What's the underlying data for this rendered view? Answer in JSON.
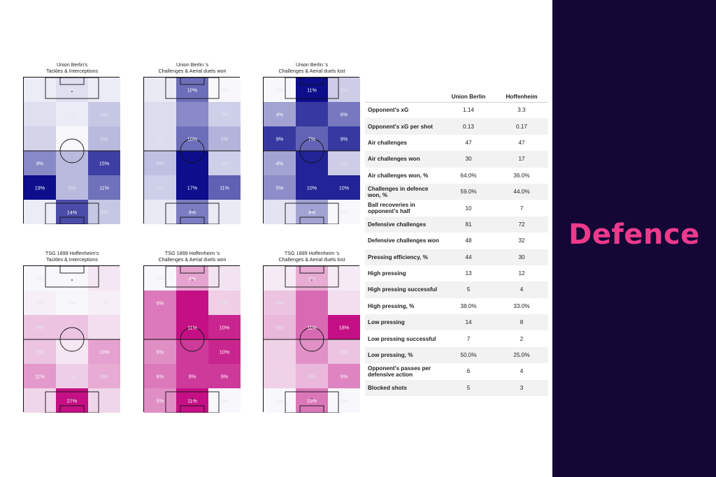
{
  "panel": {
    "title": "Defence",
    "background": "#140736",
    "accent": "#ee3a8c"
  },
  "teams": {
    "home": "Union Berlin",
    "away": "Hoffenheim"
  },
  "chart_data": [
    {
      "type": "heatmap",
      "title": "Union Berlin's\nTackles & Interceptions",
      "colormap": "blues",
      "rows": 6,
      "cols": 3,
      "labels": [
        [
          "",
          "2%",
          ""
        ],
        [
          "2%",
          "1%",
          "4%"
        ],
        [
          "",
          "",
          "5%"
        ],
        [
          "9%",
          "",
          "15%"
        ],
        [
          "19%",
          "5%",
          "11%"
        ],
        [
          "",
          "14%",
          "4%"
        ]
      ],
      "values": [
        [
          1,
          2,
          1
        ],
        [
          2,
          1,
          4
        ],
        [
          3,
          0,
          5
        ],
        [
          9,
          5,
          15
        ],
        [
          19,
          5,
          11
        ],
        [
          1,
          14,
          4
        ]
      ]
    },
    {
      "type": "heatmap",
      "title": "Union Berlin 's\nChallenges & Aerial duels won",
      "colormap": "blues",
      "rows": 6,
      "cols": 3,
      "labels": [
        [
          "3%",
          "10%",
          "0%"
        ],
        [
          "",
          "",
          "3%"
        ],
        [
          "0%",
          "10%",
          "5%"
        ],
        [
          "4%",
          "",
          "3%"
        ],
        [
          "1%",
          "17%",
          "11%"
        ],
        [
          "",
          "9%",
          ""
        ]
      ],
      "values": [
        [
          1,
          10,
          0
        ],
        [
          2,
          8,
          3
        ],
        [
          2,
          10,
          5
        ],
        [
          4,
          17,
          3
        ],
        [
          3,
          17,
          11
        ],
        [
          1,
          9,
          1
        ]
      ]
    },
    {
      "type": "heatmap",
      "title": "Union Berlin 's\nChallenges & Aerial duels lost",
      "colormap": "blues",
      "rows": 6,
      "cols": 3,
      "labels": [
        [
          "0%",
          "11%",
          "2%"
        ],
        [
          "4%",
          "",
          "6%"
        ],
        [
          "9%",
          "7%",
          "9%"
        ],
        [
          "4%",
          "",
          "2%"
        ],
        [
          "5%",
          "10%",
          "10%"
        ],
        [
          "",
          "4%",
          "0%"
        ]
      ],
      "values": [
        [
          0,
          11,
          2
        ],
        [
          4,
          9,
          6
        ],
        [
          9,
          7,
          9
        ],
        [
          4,
          10,
          2
        ],
        [
          5,
          10,
          10
        ],
        [
          1,
          4,
          0
        ]
      ]
    },
    {
      "type": "heatmap",
      "title": "TSG 1899 Hoffenheim's\nTackles & Interceptions",
      "colormap": "pinks",
      "rows": 6,
      "cols": 3,
      "labels": [
        [
          "0%",
          "",
          "2%"
        ],
        [
          "1%",
          "0%",
          "1%"
        ],
        [
          "6%",
          "",
          ""
        ],
        [
          "6%",
          "",
          "10%"
        ],
        [
          "11%",
          "5%",
          "9%"
        ],
        [
          "",
          "27%",
          ""
        ]
      ],
      "values": [
        [
          0,
          0,
          2
        ],
        [
          1,
          0,
          1
        ],
        [
          6,
          6,
          3
        ],
        [
          6,
          2,
          10
        ],
        [
          11,
          5,
          9
        ],
        [
          4,
          27,
          4
        ]
      ]
    },
    {
      "type": "heatmap",
      "title": "TSG 1899 Hoffenheim 's\nChallenges & Aerial duels won",
      "colormap": "pinks",
      "rows": 6,
      "cols": 3,
      "labels": [
        [
          "0%",
          "4%",
          ""
        ],
        [
          "6%",
          "",
          "0%"
        ],
        [
          "",
          "11%",
          "10%"
        ],
        [
          "5%",
          "",
          "10%"
        ],
        [
          "6%",
          "9%",
          "9%"
        ],
        [
          "5%",
          "11%",
          "0%"
        ]
      ],
      "values": [
        [
          0,
          4,
          1
        ],
        [
          6,
          11,
          2
        ],
        [
          6,
          11,
          10
        ],
        [
          5,
          9,
          10
        ],
        [
          6,
          9,
          9
        ],
        [
          5,
          11,
          0
        ]
      ]
    },
    {
      "type": "heatmap",
      "title": "TSG 1899 Hoffenheim 's\nChallenges & Aerial duels lost",
      "colormap": "pinks",
      "rows": 6,
      "cols": 3,
      "labels": [
        [
          "",
          "6%",
          ""
        ],
        [
          "4%",
          "",
          "2%"
        ],
        [
          "5%",
          "11%",
          "18%"
        ],
        [
          "3%",
          "",
          "4%"
        ],
        [
          "3%",
          "5%",
          "9%"
        ],
        [
          "0%",
          "10%",
          "0%"
        ]
      ],
      "values": [
        [
          1,
          6,
          1
        ],
        [
          4,
          11,
          2
        ],
        [
          5,
          11,
          18
        ],
        [
          3,
          8,
          4
        ],
        [
          3,
          5,
          9
        ],
        [
          0,
          10,
          0
        ]
      ]
    }
  ],
  "table": {
    "headers": [
      "",
      "Union Berlin",
      "Hoffenheim"
    ],
    "rows": [
      [
        "Opponent's xG",
        "1.14",
        "3.3"
      ],
      [
        "Opponent's xG per shot",
        "0.13",
        "0.17"
      ],
      [
        "Air challenges",
        "47",
        "47"
      ],
      [
        "Air challenges won",
        "30",
        "17"
      ],
      [
        "Air challenges won, %",
        "64.0%",
        "36.0%"
      ],
      [
        "Challenges in defence won, %",
        "59.0%",
        "44.0%"
      ],
      [
        "Ball recoveries in opponent's half",
        "10",
        "7"
      ],
      [
        "Defensive challenges",
        "81",
        "72"
      ],
      [
        "Defensive challenges won",
        "48",
        "32"
      ],
      [
        "Pressing efficiency, %",
        "44",
        "30"
      ],
      [
        "High pressing",
        "13",
        "12"
      ],
      [
        "High pressing successful",
        "5",
        "4"
      ],
      [
        "High pressing, %",
        "38.0%",
        "33.0%"
      ],
      [
        "Low pressing",
        "14",
        "8"
      ],
      [
        "Low pressing successful",
        "7",
        "2"
      ],
      [
        "Low pressing, %",
        "50.0%",
        "25.0%"
      ],
      [
        "Opponent's passes per defensive action",
        "6",
        "4"
      ],
      [
        "Blocked shots",
        "5",
        "3"
      ]
    ]
  }
}
